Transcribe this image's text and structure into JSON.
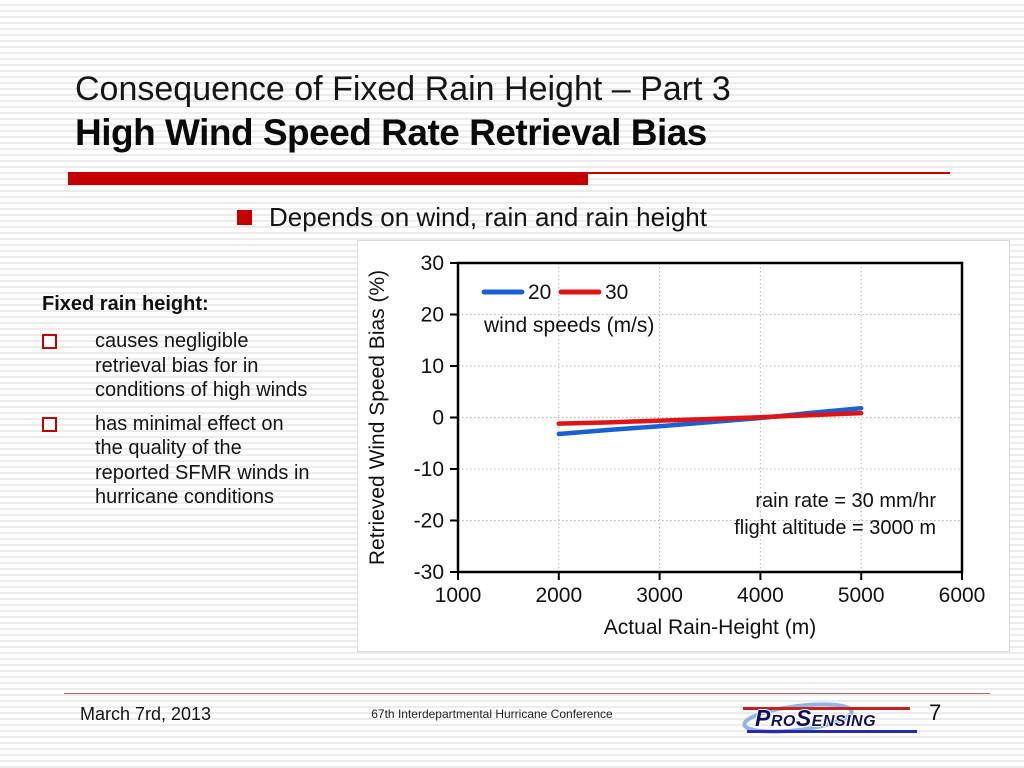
{
  "slide": {
    "title_line1": "Consequence of Fixed Rain Height – Part 3",
    "title_line2": "High Wind Speed Rate Retrieval Bias",
    "bullet": "Depends on wind, rain and rain height",
    "left_panel": {
      "heading": "Fixed rain height:",
      "items": [
        "causes negligible\nretrieval bias for in\nconditions of high winds",
        "has minimal effect on\nthe quality of the\nreported SFMR winds in\nhurricane conditions"
      ]
    }
  },
  "footer": {
    "date": "March 7rd, 2013",
    "conference": "67th Interdepartmental Hurricane Conference",
    "page": "7",
    "logo_text": "ProSensing"
  },
  "colors": {
    "accent_red": "#c40000",
    "series_blue": "#1b5fd6",
    "series_red": "#e01414",
    "gridline": "#b5b5b5",
    "logo_navy": "#101060"
  },
  "chart_data": {
    "type": "line",
    "title": "",
    "xlabel": "Actual Rain-Height (m)",
    "ylabel": "Retrieved Wind Speed Bias (%)",
    "xlim": [
      1000,
      6000
    ],
    "ylim": [
      -30,
      30
    ],
    "xticks": [
      1000,
      2000,
      3000,
      4000,
      5000,
      6000
    ],
    "yticks": [
      30,
      20,
      10,
      0,
      -10,
      -20,
      -30
    ],
    "grid": "dotted",
    "legend_position": "top-left-inside",
    "legend_title": "wind speeds (m/s)",
    "series": [
      {
        "name": "20",
        "color": "#1b5fd6",
        "x": [
          2000,
          2500,
          3000,
          3500,
          4000,
          4500,
          5000
        ],
        "y": [
          -3.2,
          -2.4,
          -1.7,
          -0.9,
          -0.1,
          0.9,
          1.8
        ]
      },
      {
        "name": "30",
        "color": "#e01414",
        "x": [
          2000,
          2500,
          3000,
          3500,
          4000,
          4500,
          5000
        ],
        "y": [
          -1.2,
          -0.95,
          -0.6,
          -0.3,
          0.05,
          0.45,
          0.85
        ]
      }
    ],
    "annotations": [
      "rain rate = 30 mm/hr",
      "flight altitude = 3000 m"
    ]
  }
}
